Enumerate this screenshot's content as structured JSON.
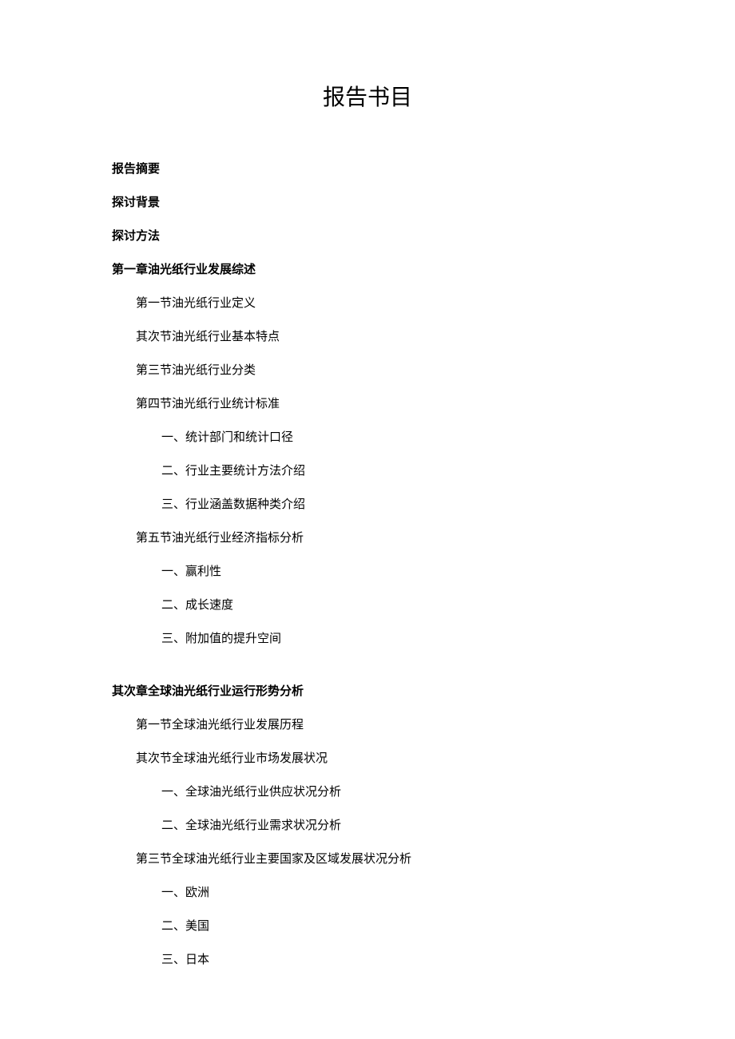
{
  "title": "报告书目",
  "sections": {
    "summary": "报告摘要",
    "background": "探讨背景",
    "method": "探讨方法",
    "chapter1": {
      "heading": "第一章油光纸行业发展综述",
      "s1": "第一节油光纸行业定义",
      "s2": "其次节油光纸行业基本特点",
      "s3": "第三节油光纸行业分类",
      "s4": "第四节油光纸行业统计标准",
      "s4_1": "一、统计部门和统计口径",
      "s4_2": "二、行业主要统计方法介绍",
      "s4_3": "三、行业涵盖数据种类介绍",
      "s5": "第五节油光纸行业经济指标分析",
      "s5_1": "一、赢利性",
      "s5_2": "二、成长速度",
      "s5_3": "三、附加值的提升空间"
    },
    "chapter2": {
      "heading": "其次章全球油光纸行业运行形势分析",
      "s1": "第一节全球油光纸行业发展历程",
      "s2": "其次节全球油光纸行业市场发展状况",
      "s2_1": "一、全球油光纸行业供应状况分析",
      "s2_2": "二、全球油光纸行业需求状况分析",
      "s3": "第三节全球油光纸行业主要国家及区域发展状况分析",
      "s3_1": "一、欧洲",
      "s3_2": "二、美国",
      "s3_3": "三、日本"
    }
  }
}
